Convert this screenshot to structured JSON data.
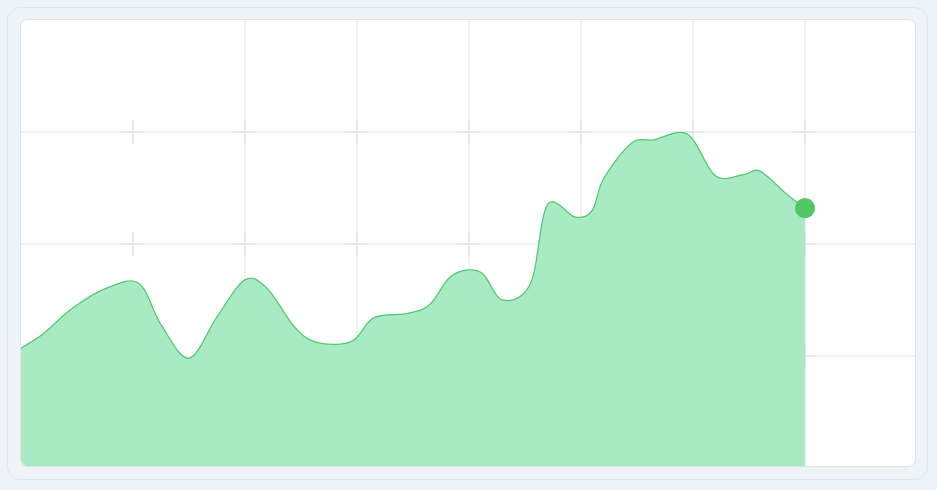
{
  "colors": {
    "page_background": "#edf3f7",
    "card_background": "#ffffff",
    "area_fill": "#a8eac4",
    "line": "#4cc866",
    "end_marker": "#52c766",
    "grid": "#e3e8ec",
    "grid_cross": "#d7dde2"
  },
  "chart_data": {
    "type": "area",
    "title": "",
    "xlabel": "",
    "ylabel": "",
    "grid": true,
    "legend": "none",
    "xlim": [
      0,
      8
    ],
    "ylim": [
      0,
      4
    ],
    "x_gridlines": [
      2,
      3,
      4,
      5,
      6,
      7
    ],
    "y_gridlines": [
      1,
      2,
      3
    ],
    "series": [
      {
        "end_marker": true,
        "x": [
          0,
          0.2,
          0.45,
          0.75,
          1.05,
          1.25,
          1.5,
          1.75,
          2.0,
          2.2,
          2.45,
          2.65,
          2.95,
          3.15,
          3.45,
          3.65,
          3.85,
          4.1,
          4.3,
          4.55,
          4.7,
          4.95,
          5.1,
          5.2,
          5.45,
          5.65,
          5.95,
          6.2,
          6.45,
          6.6,
          6.83,
          7.0
        ],
        "y": [
          1.07,
          1.2,
          1.42,
          1.6,
          1.65,
          1.28,
          0.98,
          1.35,
          1.68,
          1.6,
          1.25,
          1.12,
          1.13,
          1.34,
          1.38,
          1.46,
          1.72,
          1.75,
          1.5,
          1.65,
          2.35,
          2.24,
          2.3,
          2.58,
          2.9,
          2.93,
          2.98,
          2.61,
          2.62,
          2.65,
          2.45,
          2.32
        ]
      }
    ]
  }
}
